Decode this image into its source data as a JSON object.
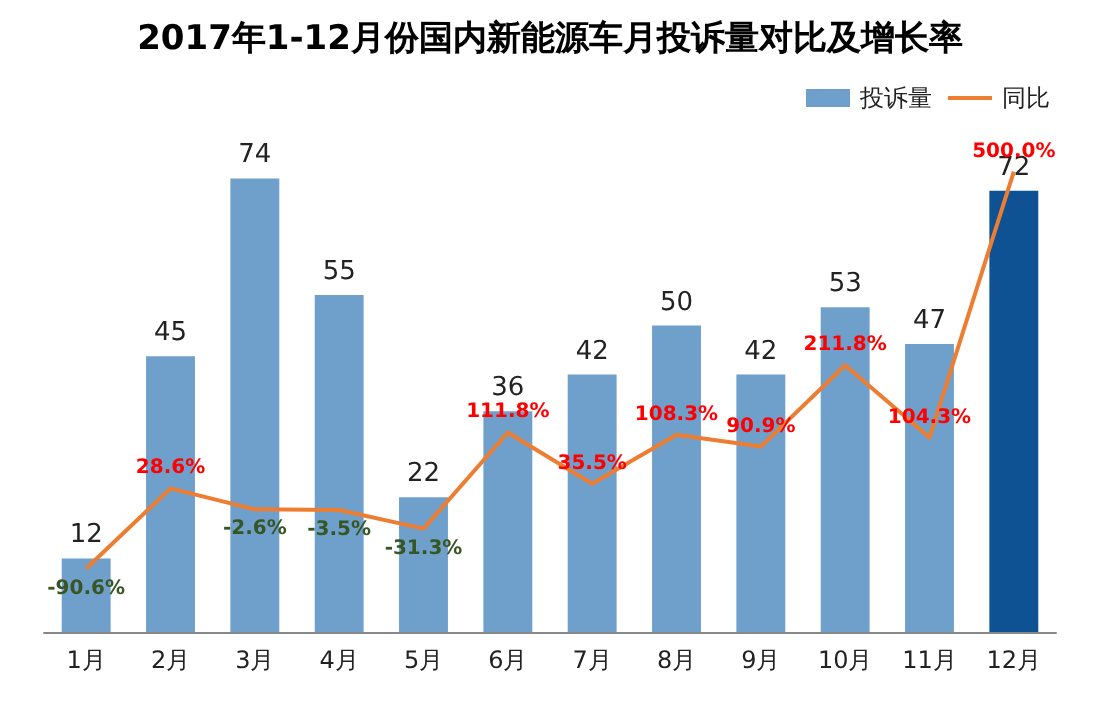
{
  "chart_data": {
    "type": "bar",
    "title": "2017年1-12月份国内新能源车月投诉量对比及增长率",
    "categories": [
      "1月",
      "2月",
      "3月",
      "4月",
      "5月",
      "6月",
      "7月",
      "8月",
      "9月",
      "10月",
      "11月",
      "12月"
    ],
    "series": [
      {
        "name": "投诉量",
        "color": "#6fa0cc",
        "colors": [
          "#6fa0cc",
          "#6fa0cc",
          "#6fa0cc",
          "#6fa0cc",
          "#6fa0cc",
          "#6fa0cc",
          "#6fa0cc",
          "#6fa0cc",
          "#6fa0cc",
          "#6fa0cc",
          "#6fa0cc",
          "#0e5293"
        ],
        "values": [
          12,
          45,
          74,
          55,
          22,
          36,
          42,
          50,
          42,
          53,
          47,
          72
        ]
      },
      {
        "name": "同比",
        "type": "line",
        "axis": "y2",
        "color": "#ed7d31",
        "values": [
          -90.6,
          28.6,
          -2.6,
          -3.5,
          -31.3,
          111.8,
          35.5,
          108.3,
          90.9,
          211.8,
          104.3,
          500.0
        ],
        "value_labels": [
          "-90.6%",
          "28.6%",
          "-2.6%",
          "-3.5%",
          "-31.3%",
          "111.8%",
          "35.5%",
          "108.3%",
          "90.9%",
          "211.8%",
          "104.3%",
          "500.0%"
        ]
      }
    ],
    "data_labels": true,
    "legend": "top right",
    "marker": "none",
    "tick_labels": false
  }
}
